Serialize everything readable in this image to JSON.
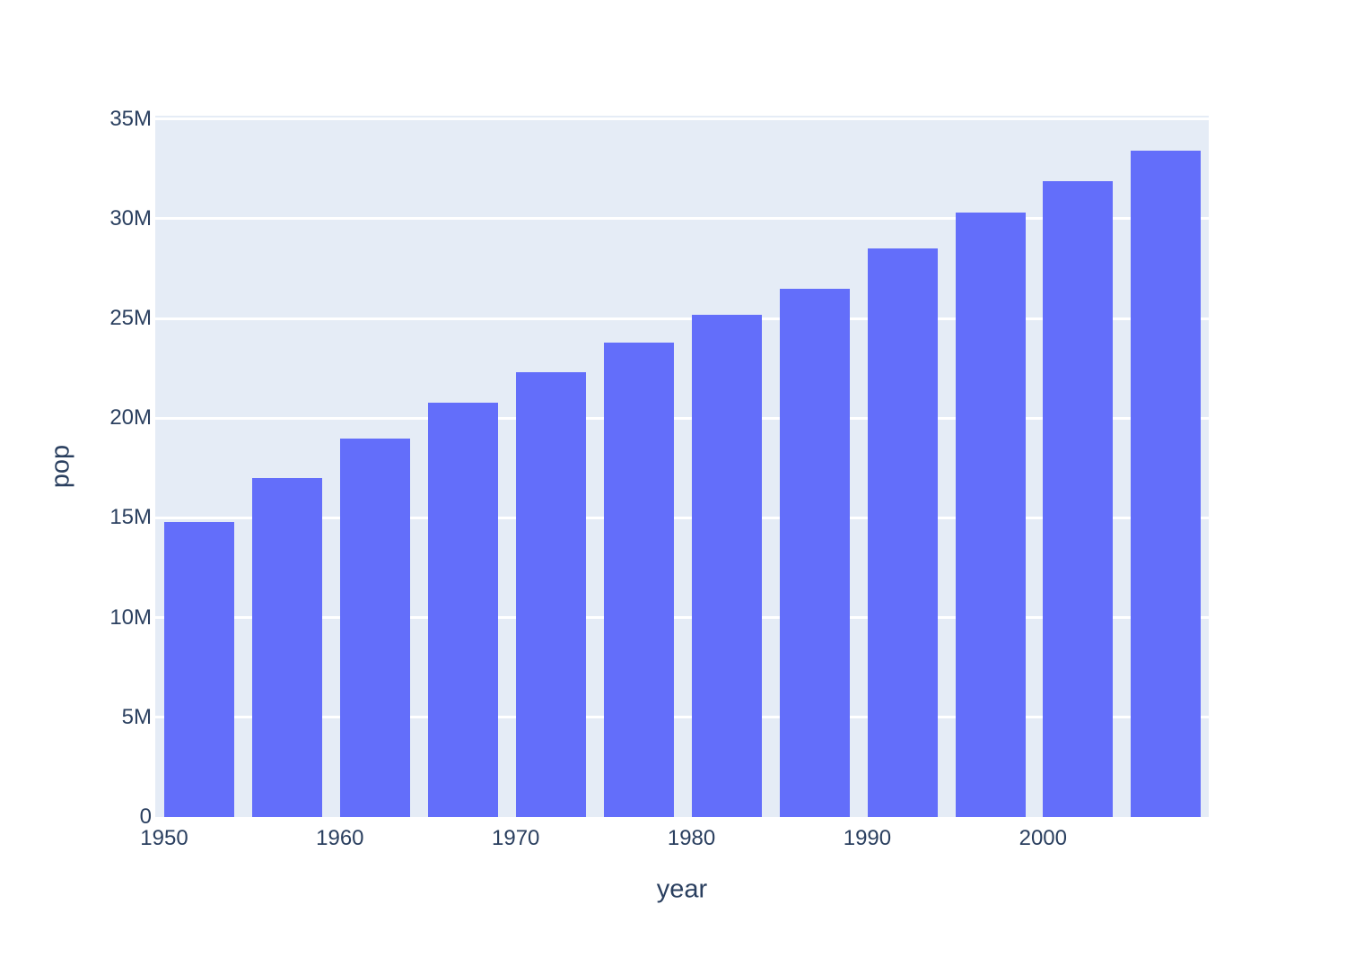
{
  "page": {
    "background_color": "#ffffff"
  },
  "chart_data": {
    "type": "bar",
    "title": "",
    "xlabel": "year",
    "ylabel": "pop",
    "x": [
      1952,
      1957,
      1962,
      1967,
      1972,
      1977,
      1982,
      1987,
      1992,
      1997,
      2002,
      2007
    ],
    "series": [
      {
        "name": "pop",
        "values_millions": [
          14.8,
          17.0,
          19.0,
          20.8,
          22.3,
          23.8,
          25.2,
          26.5,
          28.5,
          30.3,
          31.9,
          33.4
        ]
      }
    ],
    "x_tick_values": [
      1950,
      1960,
      1970,
      1980,
      1990,
      2000
    ],
    "x_tick_labels": [
      "1950",
      "1960",
      "1970",
      "1980",
      "1990",
      "2000"
    ],
    "y_tick_values_millions": [
      0,
      5,
      10,
      15,
      20,
      25,
      30,
      35
    ],
    "y_tick_labels": [
      "0",
      "5M",
      "10M",
      "15M",
      "20M",
      "25M",
      "30M",
      "35M"
    ],
    "xlim": [
      1949.49,
      2009.43
    ],
    "ylim_millions": [
      0,
      35.17
    ],
    "grid": "horizontal",
    "legend_position": "none",
    "colors": {
      "bar": "#636efa",
      "plot_background": "#e5ecf6",
      "gridline": "#ffffff",
      "text": "#2a3f5f"
    }
  }
}
